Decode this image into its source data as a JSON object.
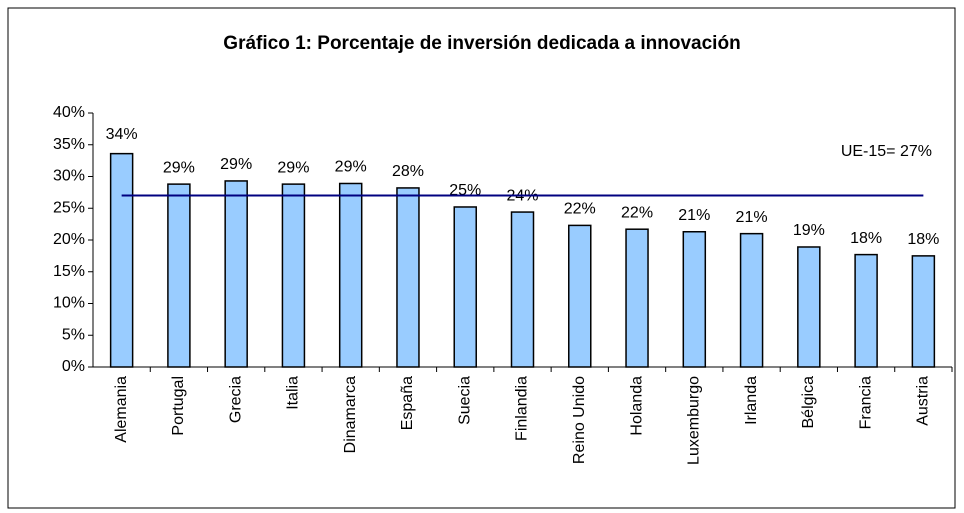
{
  "chart_data": {
    "type": "bar",
    "title": "Gráfico 1: Porcentaje de inversión dedicada a innovación",
    "categories": [
      "Alemania",
      "Portugal",
      "Grecia",
      "Italia",
      "Dinamarca",
      "España",
      "Suecia",
      "Finlandia",
      "Reino Unido",
      "Holanda",
      "Luxemburgo",
      "Irlanda",
      "Bélgica",
      "Francia",
      "Austria"
    ],
    "values": [
      33.6,
      28.8,
      29.3,
      28.8,
      28.9,
      28.2,
      25.2,
      24.4,
      22.3,
      21.7,
      21.3,
      21.0,
      18.9,
      17.7,
      17.5
    ],
    "value_labels": [
      "34%",
      "29%",
      "29%",
      "29%",
      "29%",
      "28%",
      "25%",
      "24%",
      "22%",
      "22%",
      "21%",
      "21%",
      "19%",
      "18%",
      "18%"
    ],
    "color": "#99ccff",
    "reference_line": {
      "value": 27,
      "label": "UE-15= 27%",
      "color": "#000080"
    },
    "ylim": [
      0,
      40
    ],
    "yticks": [
      {
        "value": 0,
        "label": "0%"
      },
      {
        "value": 5,
        "label": "5%"
      },
      {
        "value": 10,
        "label": "10%"
      },
      {
        "value": 15,
        "label": "15%"
      },
      {
        "value": 20,
        "label": "20%"
      },
      {
        "value": 25,
        "label": "25%"
      },
      {
        "value": 30,
        "label": "30%"
      },
      {
        "value": 35,
        "label": "35%"
      },
      {
        "value": 40,
        "label": "40%"
      }
    ],
    "grid": false
  }
}
